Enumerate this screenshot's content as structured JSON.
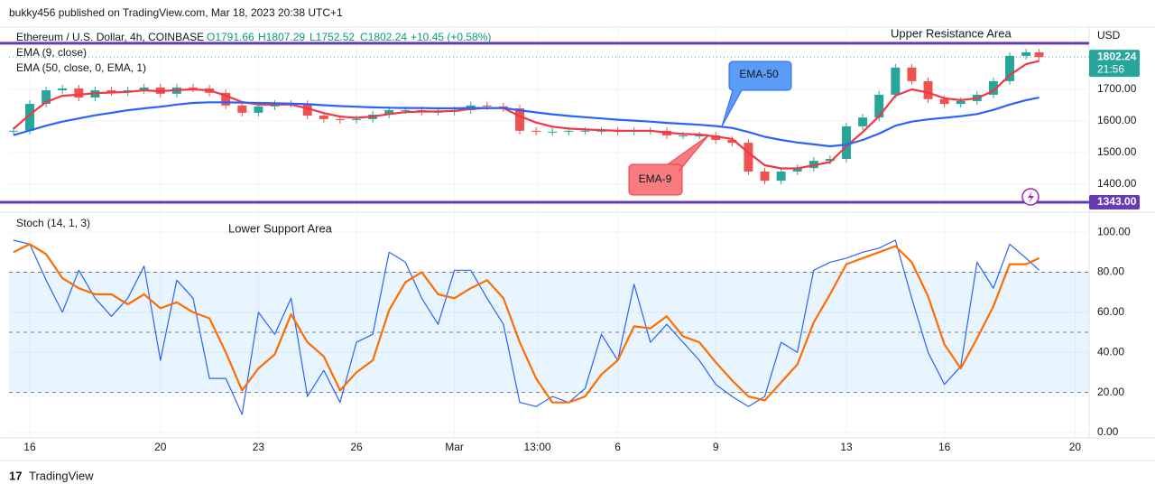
{
  "header": {
    "publisher": "bukky456 published on TradingView.com, Mar 18, 2023 20:38 UTC+1",
    "symbol": "Ethereum / U.S. Dollar, 4h, COINBASE",
    "open": "O1791.66",
    "high": "H1807.29",
    "low": "L1752.52",
    "close": "C1802.24",
    "change": "+10.45 (+0.58%)",
    "currency": "USD",
    "countdown": "21:56"
  },
  "annotations": {
    "resistance": "Upper Resistance Area",
    "support": "Lower Support Area",
    "ema50": "EMA-50",
    "ema9": "EMA-9"
  },
  "footer": {
    "brand": "TradingView"
  },
  "chart_data": [
    {
      "type": "candlestick",
      "x": [
        -0.5,
        0,
        0.5,
        1,
        1.5,
        2,
        2.5,
        3,
        3.5,
        4,
        4.5,
        5,
        5.5,
        6,
        6.5,
        7,
        7.5,
        8,
        8.5,
        9,
        9.5,
        10,
        10.5,
        11,
        11.5,
        12,
        12.5,
        13,
        13.5,
        14,
        14.5,
        15,
        15.5,
        16,
        16.5,
        17,
        17.5,
        18,
        18.5,
        19,
        19.5,
        20,
        20.5,
        21,
        21.5,
        22,
        22.5,
        23,
        23.5,
        24,
        24.5,
        25,
        25.5,
        26,
        26.5,
        27,
        27.5,
        28,
        28.5,
        29,
        29.5,
        30,
        30.5,
        30.9
      ],
      "xlim": [
        -0.635,
        32.43
      ],
      "xticks": [
        {
          "value": 0,
          "label": "16"
        },
        {
          "value": 4,
          "label": "20"
        },
        {
          "value": 7,
          "label": "23"
        },
        {
          "value": 10,
          "label": "26"
        },
        {
          "value": 13,
          "label": "Mar"
        },
        {
          "value": 15.54,
          "label": "13:00"
        },
        {
          "value": 18,
          "label": "6"
        },
        {
          "value": 21,
          "label": "9"
        },
        {
          "value": 25,
          "label": "13"
        },
        {
          "value": 28,
          "label": "16"
        },
        {
          "value": 32,
          "label": "20"
        }
      ],
      "ylim": [
        1320,
        1897
      ],
      "yticks": [
        {
          "value": 1400,
          "label": "1400.00"
        },
        {
          "value": 1500,
          "label": "1500.00"
        },
        {
          "value": 1600,
          "label": "1600.00"
        },
        {
          "value": 1700,
          "label": "1700.00"
        }
      ],
      "grid": true,
      "resistance_level": 1846,
      "support_level": {
        "value": 1343,
        "label": "1343.00"
      },
      "level_color": "#673ab7",
      "series": [
        {
          "name": "Ethereum / U.S. Dollar, 4h, COINBASE",
          "up_color": "#26a69a",
          "down_color": "#ef5350",
          "values": [
            1569,
            1654,
            1697,
            1703,
            1674,
            1697,
            1691,
            1697,
            1706,
            1686,
            1706,
            1703,
            1689,
            1649,
            1626,
            1646,
            1654,
            1654,
            1617,
            1606,
            1603,
            1606,
            1620,
            1634,
            1634,
            1629,
            1629,
            1634,
            1649,
            1646,
            1640,
            1569,
            1566,
            1566,
            1569,
            1569,
            1569,
            1566,
            1569,
            1569,
            1554,
            1554,
            1554,
            1540,
            1531,
            1440,
            1411,
            1440,
            1451,
            1474,
            1480,
            1583,
            1611,
            1683,
            1769,
            1726,
            1669,
            1654,
            1663,
            1683,
            1726,
            1806,
            1817,
            1802.24
          ]
        },
        {
          "name": "EMA (9, close)",
          "color": "#f23645",
          "values": [
            1575,
            1620,
            1660,
            1680,
            1683,
            1688,
            1690,
            1692,
            1697,
            1694,
            1698,
            1700,
            1697,
            1680,
            1660,
            1652,
            1652,
            1652,
            1640,
            1625,
            1614,
            1610,
            1614,
            1622,
            1628,
            1630,
            1630,
            1632,
            1638,
            1641,
            1641,
            1615,
            1595,
            1582,
            1576,
            1573,
            1571,
            1569,
            1569,
            1569,
            1563,
            1559,
            1557,
            1551,
            1543,
            1500,
            1460,
            1450,
            1450,
            1460,
            1470,
            1520,
            1565,
            1615,
            1680,
            1700,
            1690,
            1672,
            1666,
            1672,
            1695,
            1745,
            1780,
            1790
          ]
        },
        {
          "name": "EMA (50, close, 0, EMA, 1)",
          "color": "#2962ff",
          "values": [
            1555,
            1570,
            1585,
            1598,
            1608,
            1618,
            1626,
            1634,
            1640,
            1645,
            1652,
            1657,
            1659,
            1659,
            1658,
            1657,
            1656,
            1655,
            1653,
            1650,
            1647,
            1645,
            1643,
            1642,
            1641,
            1641,
            1640,
            1640,
            1641,
            1641,
            1641,
            1634,
            1627,
            1621,
            1616,
            1612,
            1608,
            1604,
            1601,
            1598,
            1594,
            1591,
            1588,
            1584,
            1578,
            1565,
            1550,
            1540,
            1532,
            1526,
            1520,
            1525,
            1540,
            1560,
            1585,
            1598,
            1605,
            1610,
            1615,
            1622,
            1635,
            1652,
            1666,
            1674
          ]
        }
      ]
    },
    {
      "type": "line",
      "title": "Stoch (14, 1, 3)",
      "ylim": [
        -2.7,
        108.6
      ],
      "yticks": [
        {
          "value": 0,
          "label": "0.00"
        },
        {
          "value": 20,
          "label": "20.00"
        },
        {
          "value": 40,
          "label": "40.00"
        },
        {
          "value": 60,
          "label": "60.00"
        },
        {
          "value": 80,
          "label": "80.00"
        },
        {
          "value": 100,
          "label": "100.00"
        }
      ],
      "band": [
        20,
        80
      ],
      "band_color": "#2196f3",
      "hlines": [
        20,
        50,
        80
      ],
      "series": [
        {
          "color": "#2962ff",
          "values": [
            96,
            94,
            76,
            60,
            81,
            67,
            58,
            67,
            83,
            36,
            76,
            67,
            27,
            27,
            9,
            60,
            49,
            67,
            18,
            31,
            15,
            45,
            49,
            90,
            85,
            67,
            54,
            81,
            81,
            67,
            54,
            15,
            13,
            18,
            15,
            22,
            49,
            36,
            74,
            45,
            54,
            45,
            36,
            24,
            18,
            13,
            18,
            45,
            40,
            81,
            85,
            87,
            90,
            92,
            96,
            67,
            40,
            24,
            33,
            85,
            72,
            94,
            87,
            81
          ]
        },
        {
          "color": "#ff6d00",
          "values": [
            90,
            94,
            89,
            77,
            72,
            69,
            69,
            64,
            69,
            62,
            65,
            60,
            57,
            40,
            21,
            32,
            39,
            59,
            45,
            38,
            21,
            30,
            36,
            61,
            75,
            80,
            69,
            67,
            72,
            76,
            67,
            45,
            27,
            15,
            15,
            18,
            29,
            36,
            53,
            52,
            58,
            48,
            45,
            35,
            26,
            18,
            16,
            25,
            34,
            55,
            69,
            84,
            87,
            90,
            93,
            85,
            68,
            44,
            32,
            47,
            63,
            84,
            84,
            87
          ]
        }
      ]
    }
  ]
}
